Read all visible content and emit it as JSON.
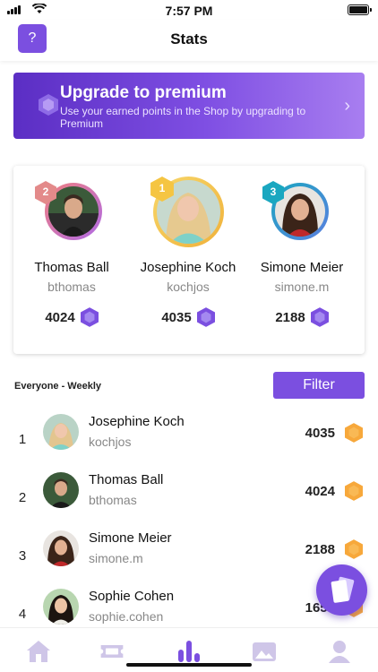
{
  "status_bar": {
    "time": "7:57 PM"
  },
  "header": {
    "title": "Stats",
    "help_label": "?"
  },
  "premium": {
    "title": "Upgrade to premium",
    "subtitle": "Use your earned points in the Shop by upgrading to Premium",
    "chevron": "›"
  },
  "podium": [
    {
      "rank": "2",
      "name": "Thomas Ball",
      "username": "bthomas",
      "score": "4024"
    },
    {
      "rank": "1",
      "name": "Josephine Koch",
      "username": "kochjos",
      "score": "4035"
    },
    {
      "rank": "3",
      "name": "Simone Meier",
      "username": "simone.m",
      "score": "2188"
    }
  ],
  "list": {
    "label": "Everyone - Weekly",
    "filter_label": "Filter",
    "rows": [
      {
        "rank": "1",
        "name": "Josephine Koch",
        "username": "kochjos",
        "score": "4035"
      },
      {
        "rank": "2",
        "name": "Thomas Ball",
        "username": "bthomas",
        "score": "4024"
      },
      {
        "rank": "3",
        "name": "Simone Meier",
        "username": "simone.m",
        "score": "2188"
      },
      {
        "rank": "4",
        "name": "Sophie Cohen",
        "username": "sophie.cohen",
        "score": "1650"
      }
    ]
  },
  "tabs": [
    {
      "icon": "home-icon"
    },
    {
      "icon": "ticket-icon"
    },
    {
      "icon": "stats-icon",
      "active": true
    },
    {
      "icon": "gallery-icon"
    },
    {
      "icon": "profile-icon"
    }
  ],
  "colors": {
    "accent": "#7b4fe0",
    "gold": "#f5c542",
    "silver": "#e38a8a",
    "bronze": "#1aa7c0",
    "coin": "#f7a83b"
  }
}
